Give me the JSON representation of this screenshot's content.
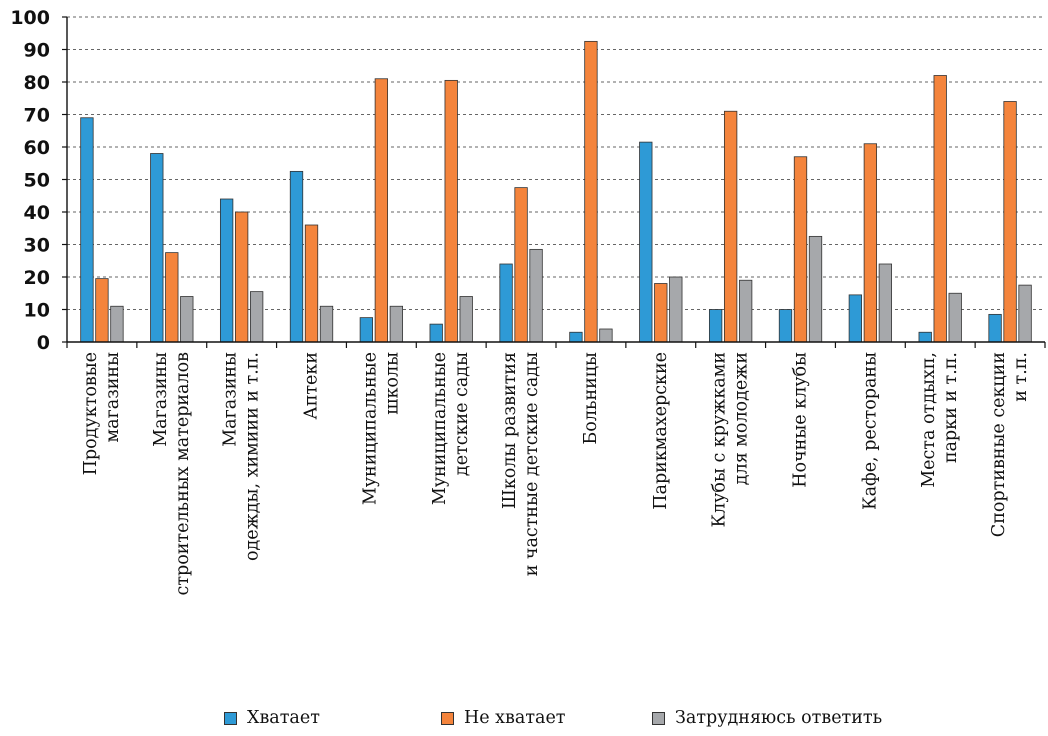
{
  "chart_data": {
    "type": "bar",
    "categories": [
      [
        "Продуктовые",
        "магазины"
      ],
      [
        "Магазины",
        "строительных материалов"
      ],
      [
        "Магазины",
        "одежды, химиии и т.п."
      ],
      [
        "Аптеки"
      ],
      [
        "Муниципальные",
        "школы"
      ],
      [
        "Муниципальные",
        "детские сады"
      ],
      [
        "Школы развития",
        "и частные детские сады"
      ],
      [
        "Больницы"
      ],
      [
        "Парикмахерские"
      ],
      [
        "Клубы с кружками",
        "для молодежи"
      ],
      [
        "Ночные клубы"
      ],
      [
        "Кафе, рестораны"
      ],
      [
        "Места отдыхп,",
        "парки и т.п."
      ],
      [
        "Спортивные секции",
        "и т.п."
      ]
    ],
    "series": [
      {
        "name": "Хватает",
        "color": "#2e9ad6",
        "values": [
          69,
          58,
          44,
          52.5,
          7.5,
          5.5,
          24,
          3,
          61.5,
          10,
          10,
          14.5,
          3,
          8.5
        ]
      },
      {
        "name": "Не хватает",
        "color": "#f4843c",
        "values": [
          19.5,
          27.5,
          40,
          36,
          81,
          80.5,
          47.5,
          92.5,
          18,
          71,
          57,
          61,
          82,
          74
        ]
      },
      {
        "name": "Затрудняюсь ответить",
        "color": "#a6a8ab",
        "values": [
          11,
          14,
          15.5,
          11,
          11,
          14,
          28.5,
          4,
          20,
          19,
          32.5,
          24,
          15,
          17.5
        ]
      }
    ],
    "y_ticks": [
      "0",
      "10",
      "20",
      "30",
      "40",
      "50",
      "60",
      "70",
      "80",
      "90",
      "100"
    ],
    "ylim": [
      0,
      100
    ],
    "grid": "dashed horizontal",
    "legend_position": "bottom"
  }
}
